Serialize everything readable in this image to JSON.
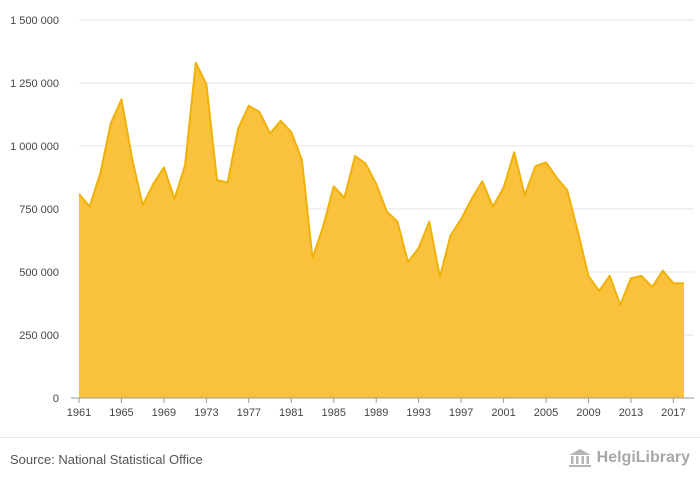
{
  "chart_data": {
    "type": "area",
    "title": "",
    "xlabel": "",
    "ylabel": "",
    "ylim": [
      0,
      1500000
    ],
    "y_ticks": [
      0,
      250000,
      500000,
      750000,
      1000000,
      1250000,
      1500000
    ],
    "y_tick_labels": [
      "0",
      "250 000",
      "500 000",
      "750 000",
      "1 000 000",
      "1 250 000",
      "1 500 000"
    ],
    "x_tick_labels": [
      "1961",
      "1965",
      "1969",
      "1973",
      "1977",
      "1981",
      "1985",
      "1989",
      "1993",
      "1997",
      "2001",
      "2005",
      "2009",
      "2013",
      "2017"
    ],
    "grid": true,
    "color": "#f9c13c",
    "line_color": "#f0b20a",
    "series": [
      {
        "x": [
          1961,
          1962,
          1963,
          1964,
          1965,
          1966,
          1967,
          1968,
          1969,
          1970,
          1971,
          1972,
          1973,
          1974,
          1975,
          1976,
          1977,
          1978,
          1979,
          1980,
          1981,
          1982,
          1983,
          1984,
          1985,
          1986,
          1987,
          1988,
          1989,
          1990,
          1991,
          1992,
          1993,
          1994,
          1995,
          1996,
          1997,
          1998,
          1999,
          2000,
          2001,
          2002,
          2003,
          2004,
          2005,
          2006,
          2007,
          2008,
          2009,
          2010,
          2011,
          2012,
          2013,
          2014,
          2015,
          2016,
          2017,
          2018
        ],
        "values": [
          810000,
          760000,
          890000,
          1090000,
          1185000,
          950000,
          765000,
          850000,
          915000,
          790000,
          925000,
          1330000,
          1245000,
          865000,
          855000,
          1070000,
          1160000,
          1135000,
          1050000,
          1100000,
          1055000,
          945000,
          555000,
          680000,
          840000,
          795000,
          960000,
          930000,
          850000,
          740000,
          700000,
          540000,
          595000,
          700000,
          480000,
          645000,
          710000,
          790000,
          860000,
          760000,
          835000,
          975000,
          805000,
          920000,
          935000,
          875000,
          825000,
          660000,
          485000,
          425000,
          485000,
          370000,
          475000,
          485000,
          440000,
          505000,
          455000,
          455000
        ]
      }
    ]
  },
  "footer": {
    "source": "Source: National Statistical Office",
    "logo_text": "HelgiLibrary",
    "logo_icon": "library-building-icon"
  }
}
